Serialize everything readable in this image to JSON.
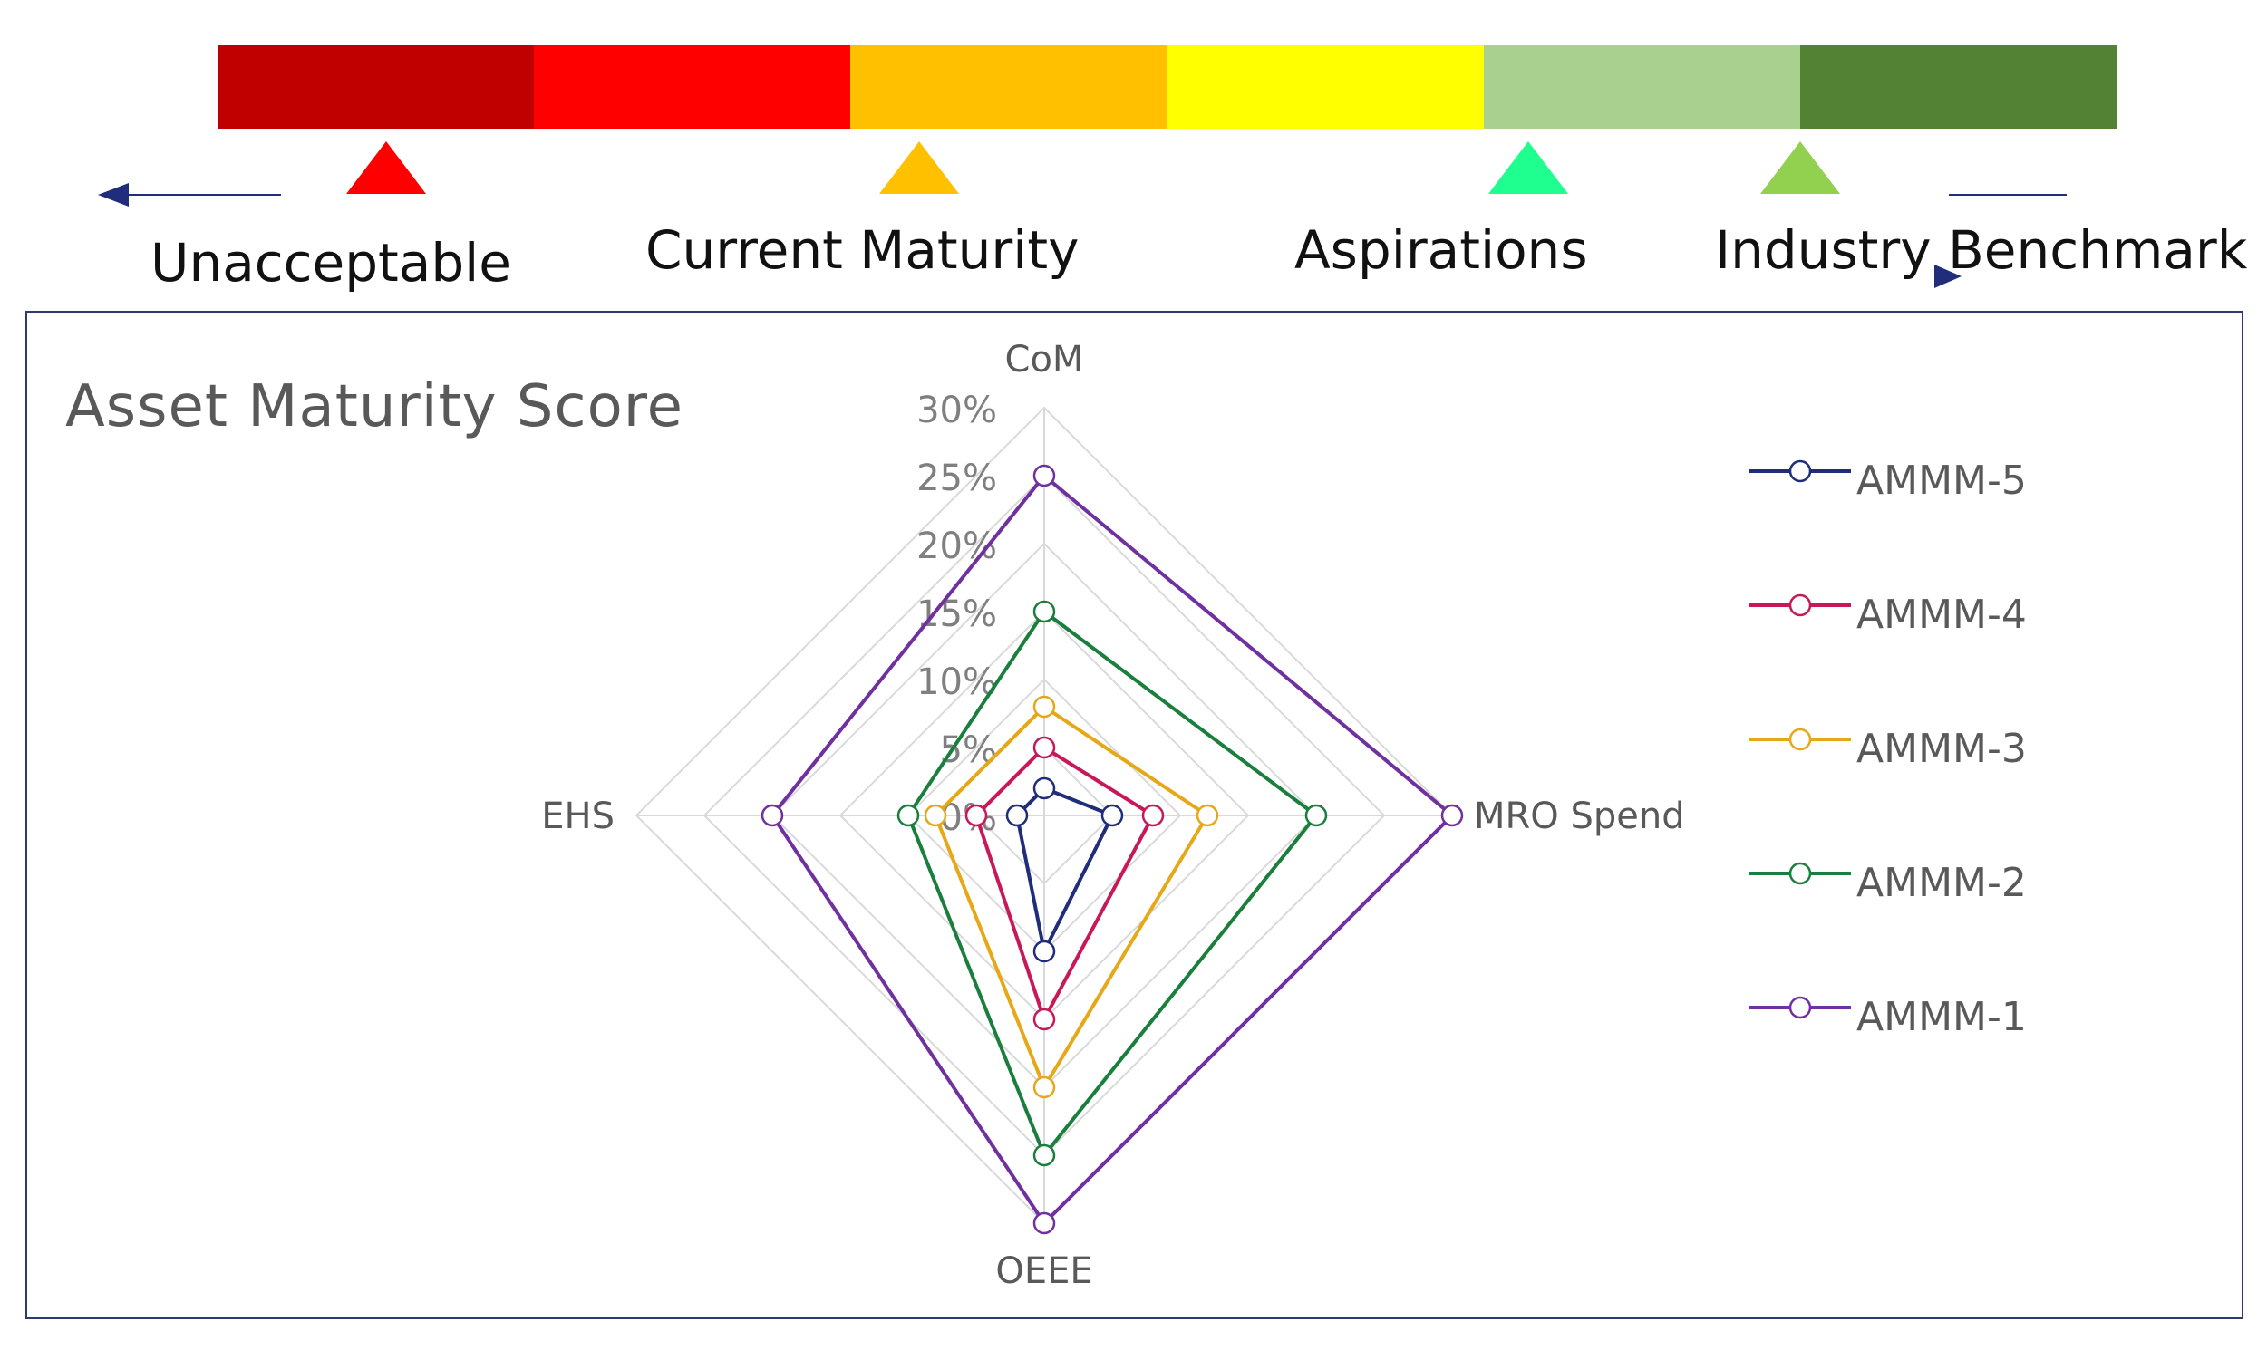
{
  "scale": {
    "segments": [
      {
        "color": "#c00000"
      },
      {
        "color": "#ff0000"
      },
      {
        "color": "#ffc000"
      },
      {
        "color": "#ffff00"
      },
      {
        "color": "#a9d08e"
      },
      {
        "color": "#548235"
      }
    ],
    "markers": [
      {
        "name": "marker-unacceptable",
        "color": "#ff0000"
      },
      {
        "name": "marker-current-maturity",
        "color": "#ffc000"
      },
      {
        "name": "marker-aspirations",
        "color": "#1fff8f"
      },
      {
        "name": "marker-industry-benchmark",
        "color": "#92d050"
      }
    ],
    "labels": {
      "unacceptable": "Unacceptable",
      "current_maturity": "Current Maturity",
      "aspirations": "Aspirations",
      "industry_benchmark": "Industry Benchmark"
    },
    "arrow_color": "#1f2d7a"
  },
  "chart_data": {
    "type": "radar",
    "title": "Asset Maturity Score",
    "axes": [
      "CoM",
      "MRO Spend",
      "OEEE",
      "EHS"
    ],
    "ticks": [
      "0%",
      "5%",
      "10%",
      "15%",
      "20%",
      "25%",
      "30%"
    ],
    "rlim": [
      0,
      30
    ],
    "grid": true,
    "legend_position": "right",
    "series": [
      {
        "name": "AMMM-5",
        "color": "#1f2d7a",
        "values": [
          2,
          5,
          10,
          2
        ]
      },
      {
        "name": "AMMM-4",
        "color": "#c8185a",
        "values": [
          5,
          8,
          15,
          5
        ]
      },
      {
        "name": "AMMM-3",
        "color": "#e6a817",
        "values": [
          8,
          12,
          20,
          8
        ]
      },
      {
        "name": "AMMM-2",
        "color": "#1a7f3c",
        "values": [
          15,
          20,
          25,
          10
        ]
      },
      {
        "name": "AMMM-1",
        "color": "#7030a0",
        "values": [
          25,
          30,
          30,
          20
        ]
      }
    ]
  }
}
